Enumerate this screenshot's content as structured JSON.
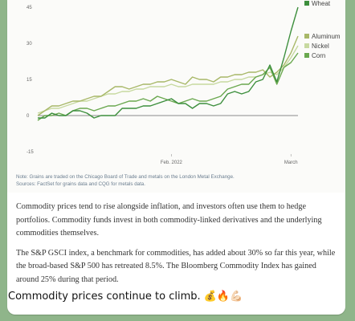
{
  "chart_data": {
    "type": "line",
    "x_ticks": [
      "Feb. 2022",
      "March"
    ],
    "y_ticks": [
      "45",
      "30",
      "15",
      "0",
      "-15"
    ],
    "ylim": [
      -15,
      45
    ],
    "legend_position": "top-right",
    "series": [
      {
        "name": "Wheat",
        "color": "#3d8f3d",
        "values": [
          -1,
          -1,
          1,
          0,
          0,
          2,
          2,
          1,
          -1,
          0,
          0,
          0,
          3,
          3,
          3,
          4,
          4,
          5,
          6,
          7,
          5,
          5,
          3,
          5,
          5,
          4,
          5,
          9,
          10,
          9,
          10,
          14,
          15,
          21,
          14,
          24,
          35,
          45
        ]
      },
      {
        "name": "Aluminum",
        "color": "#a8b868",
        "values": [
          0,
          2,
          4,
          4,
          5,
          6,
          6,
          7,
          8,
          8,
          10,
          12,
          12,
          11,
          12,
          13,
          13,
          14,
          14,
          15,
          14,
          13,
          16,
          15,
          15,
          14,
          16,
          16,
          17,
          17,
          18,
          18,
          19,
          16,
          18,
          21,
          26,
          33
        ]
      },
      {
        "name": "Nickel",
        "color": "#c7d9a0",
        "values": [
          1,
          2,
          3,
          3,
          4,
          5,
          6,
          6,
          7,
          8,
          9,
          9,
          10,
          10,
          11,
          11,
          12,
          12,
          12,
          13,
          12,
          12,
          13,
          13,
          13,
          13,
          14,
          14,
          15,
          15,
          16,
          16,
          17,
          18,
          17,
          20,
          24,
          29
        ]
      },
      {
        "name": "Corn",
        "color": "#6aa84f",
        "values": [
          -2,
          0,
          0,
          1,
          0,
          2,
          3,
          3,
          2,
          3,
          4,
          4,
          5,
          6,
          6,
          7,
          6,
          8,
          7,
          6,
          5,
          6,
          7,
          6,
          6,
          7,
          8,
          11,
          12,
          13,
          13,
          16,
          17,
          20,
          13,
          20,
          22,
          26
        ]
      }
    ]
  },
  "note": {
    "line1": "Note: Grains are traded on the Chicago Board of Trade and metals on the London Metal Exchange.",
    "line2": "Sources: FactSet for grains data and CQG for metals data."
  },
  "article": {
    "p1": "Commodity prices tend to rise alongside inflation, and investors often use them to hedge portfolios. Commodity funds invest in both commodity-linked derivatives and the underlying commodities themselves.",
    "p2": "The S&P GSCI index, a benchmark for commodities, has added about 30% so far this year, while the broad-based S&P 500 has retreated 8.5%. The Bloomberg Commodity Index has gained around 25% during that period."
  },
  "caption": "Commodity prices continue to climb. 💰🔥💪🏻"
}
